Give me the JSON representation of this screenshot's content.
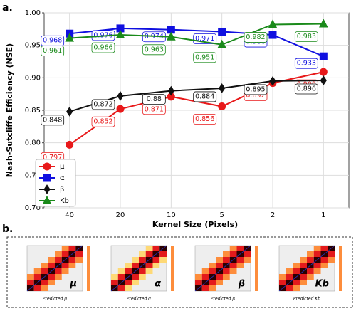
{
  "chart_data": {
    "type": "line",
    "panel_label": "a.",
    "ylabel": "Nash-Sutcliffe Efficiency (NSE)",
    "xlabel": "Kernel Size (Pixels)",
    "categories": [
      "40",
      "20",
      "10",
      "5",
      "2",
      "1"
    ],
    "ylim": [
      0.7,
      1.0
    ],
    "yticks": [
      {
        "value": 0.7,
        "label": "0.70"
      },
      0.75,
      {
        "value": 0.8,
        "label": "0.80"
      },
      0.85,
      {
        "value": 0.9,
        "label": "0.90"
      },
      0.95,
      {
        "value": 1.0,
        "label": "1.00"
      }
    ],
    "grid": true,
    "legend": "lower left",
    "series": [
      {
        "name": "μ",
        "color": "#e8191a",
        "marker": "circle",
        "values": [
          0.797,
          0.852,
          0.871,
          0.856,
          0.892,
          0.909
        ]
      },
      {
        "name": "α",
        "color": "#1010e0",
        "marker": "square",
        "values": [
          0.968,
          0.976,
          0.974,
          0.971,
          0.966,
          0.933
        ]
      },
      {
        "name": "β",
        "color": "#111111",
        "marker": "diamond",
        "values": [
          0.848,
          0.872,
          0.88,
          0.884,
          0.895,
          0.896
        ]
      },
      {
        "name": "Kb",
        "color": "#1a8a1a",
        "marker": "triangle",
        "values": [
          0.961,
          0.966,
          0.963,
          0.951,
          0.982,
          0.983
        ]
      }
    ]
  },
  "panel_b": {
    "label": "b.",
    "panels": [
      {
        "letter": "μ",
        "xlabel": "Predicted μ"
      },
      {
        "letter": "α",
        "xlabel": "Predicted α"
      },
      {
        "letter": "β",
        "xlabel": "Predicted β"
      },
      {
        "letter": "Kb",
        "xlabel": "Predicted Kb"
      }
    ]
  }
}
